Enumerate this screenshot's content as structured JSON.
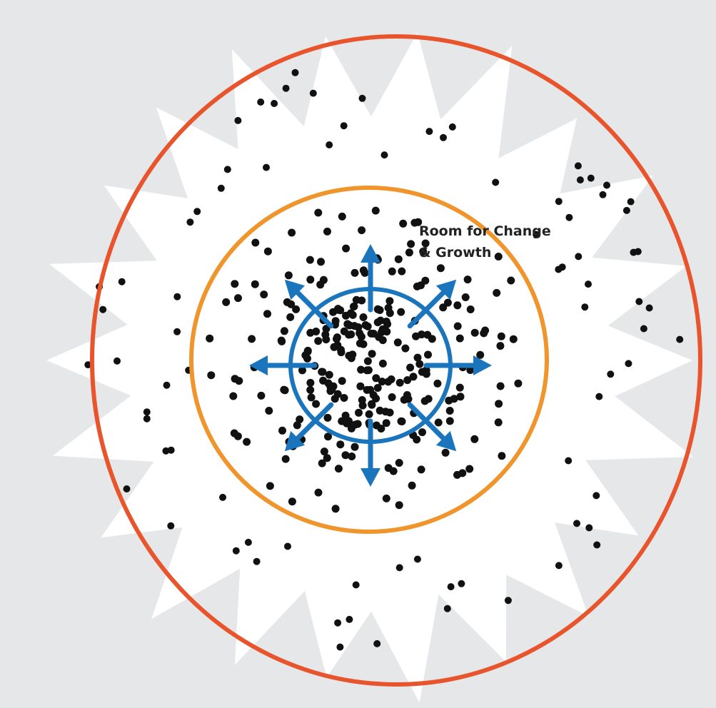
{
  "diagram": {
    "label_lines": [
      "Room for Change",
      "& Growth"
    ]
  },
  "colors": {
    "background": "#e6e7e8",
    "burst_fill": "#ffffff",
    "outer_ring": "#e8542b",
    "middle_ring": "#f0952b",
    "inner_ring": "#1b75bc",
    "arrows": "#1b75bc",
    "dots": "#111111",
    "label": "#222222"
  },
  "icons": {
    "burst": "starburst-shape",
    "arrows": "arrow-icon",
    "dots": "dot"
  }
}
